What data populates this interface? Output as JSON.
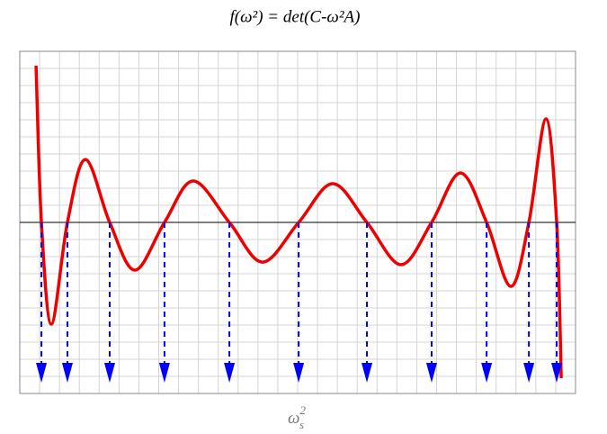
{
  "chart_data": {
    "type": "line",
    "title": "f(ω²) = det(C-ω²A)",
    "xlabel": {
      "base": "ω",
      "sub": "s",
      "sup": "2"
    },
    "xlim": [
      0,
      28
    ],
    "ylim": [
      -10,
      10
    ],
    "xticks": [
      0,
      1,
      2,
      3,
      4,
      5,
      6,
      7,
      8,
      9,
      10,
      11,
      12,
      13,
      14,
      15,
      16,
      17,
      18,
      19,
      20,
      21,
      22,
      23,
      24,
      25,
      26,
      27,
      28
    ],
    "yticks": [
      -10,
      -9,
      -8,
      -7,
      -6,
      -5,
      -4,
      -3,
      -2,
      -1,
      0,
      1,
      2,
      3,
      4,
      5,
      6,
      7,
      8,
      9,
      10
    ],
    "grid": true,
    "series": [
      {
        "color": "#ee0000",
        "x": [
          0.82,
          1.09,
          1.59,
          2.4,
          3.31,
          4.53,
          5.8,
          7.29,
          8.74,
          10.56,
          12.23,
          14.05,
          15.77,
          17.49,
          19.21,
          20.75,
          22.2,
          23.52,
          24.74,
          25.65,
          26.51,
          27.05,
          27.28
        ],
        "values": [
          9.16,
          0,
          -5.95,
          0,
          3.68,
          0,
          -2.79,
          0,
          2.42,
          0,
          -2.32,
          0,
          2.26,
          0,
          -2.47,
          0,
          2.89,
          0,
          -3.74,
          0,
          6.05,
          0,
          -9.1
        ]
      }
    ],
    "roots": {
      "color": "#0000ff",
      "x": [
        1.09,
        2.4,
        4.53,
        7.29,
        10.56,
        14.05,
        17.49,
        20.75,
        23.52,
        25.65,
        27.05
      ]
    }
  }
}
